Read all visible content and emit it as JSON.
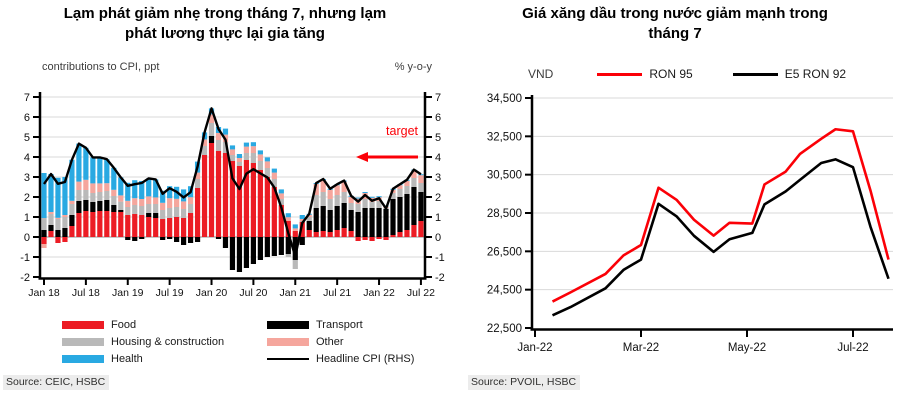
{
  "page": {
    "background": "#ffffff"
  },
  "colors": {
    "food": "#ec1c24",
    "transport": "#000000",
    "housing": "#b9b9b9",
    "other": "#f5a69d",
    "health": "#29a9e2",
    "headline": "#000000",
    "target": "#fb0007",
    "ron95": "#fb0007",
    "e5ron92": "#000000",
    "grid": "#d9d9d9",
    "axis": "#000000"
  },
  "left_chart": {
    "title_lines": [
      "Lạm phát giảm nhẹ trong tháng 7, nhưng lạm",
      "phát lương thực lại gia tăng"
    ],
    "left_axis_caption": "contributions to CPI, ppt",
    "right_axis_caption": "% y-o-y",
    "source": "Source: CEIC, HSBC"
  },
  "right_chart": {
    "title_lines": [
      "Giá xăng dầu trong nước giảm mạnh trong",
      "tháng 7"
    ],
    "source": "Source: PVOIL, HSBC"
  },
  "chart_data": [
    {
      "type": "stacked-bar+line",
      "title": "Lạm phát giảm nhẹ trong tháng 7, nhưng lạm phát lương thực lại gia tăng",
      "left_axis_label": "contributions to CPI, ppt",
      "right_axis_label": "% y-o-y",
      "ylim": [
        -2,
        7
      ],
      "ytick_step": 1,
      "grid": "horizontal",
      "xtick_every": 6,
      "xtick_labels": [
        "Jan 18",
        "Jul 18",
        "Jan 19",
        "Jul 19",
        "Jan 20",
        "Jul 20",
        "Jan 21",
        "Jul 21",
        "Jan 22",
        "Jul 22"
      ],
      "annotation": {
        "text": "target",
        "y": 4
      },
      "categories": [
        "Jan-18",
        "Feb-18",
        "Mar-18",
        "Apr-18",
        "May-18",
        "Jun-18",
        "Jul-18",
        "Aug-18",
        "Sep-18",
        "Oct-18",
        "Nov-18",
        "Dec-18",
        "Jan-19",
        "Feb-19",
        "Mar-19",
        "Apr-19",
        "May-19",
        "Jun-19",
        "Jul-19",
        "Aug-19",
        "Sep-19",
        "Oct-19",
        "Nov-19",
        "Dec-19",
        "Jan-20",
        "Feb-20",
        "Mar-20",
        "Apr-20",
        "May-20",
        "Jun-20",
        "Jul-20",
        "Aug-20",
        "Sep-20",
        "Oct-20",
        "Nov-20",
        "Dec-20",
        "Jan-21",
        "Feb-21",
        "Mar-21",
        "Apr-21",
        "May-21",
        "Jun-21",
        "Jul-21",
        "Aug-21",
        "Sep-21",
        "Oct-21",
        "Nov-21",
        "Dec-21",
        "Jan-22",
        "Feb-22",
        "Mar-22",
        "Apr-22",
        "May-22",
        "Jun-22",
        "Jul-22"
      ],
      "series": [
        {
          "name": "Food",
          "color_key": "food",
          "values": [
            -0.35,
            0.3,
            -0.3,
            -0.25,
            0.55,
            1.2,
            1.3,
            1.25,
            1.3,
            1.3,
            1.25,
            1.25,
            1.1,
            1.15,
            1.1,
            1.0,
            0.95,
            0.9,
            0.95,
            1.0,
            0.95,
            1.2,
            2.45,
            4.1,
            4.7,
            4.3,
            4.2,
            3.8,
            3.55,
            3.85,
            3.7,
            3.35,
            3.0,
            2.5,
            1.6,
            0.8,
            0.3,
            0.75,
            0.35,
            0.25,
            0.3,
            0.25,
            0.35,
            0.45,
            0.3,
            -0.2,
            -0.15,
            -0.2,
            -0.1,
            -0.15,
            0.1,
            0.25,
            0.35,
            0.6,
            0.8
          ]
        },
        {
          "name": "Transport",
          "color_key": "transport",
          "values": [
            0.35,
            0.3,
            0.35,
            0.45,
            0.55,
            0.6,
            0.55,
            0.5,
            0.5,
            0.55,
            0.35,
            0.1,
            -0.15,
            -0.2,
            -0.1,
            0.2,
            0.25,
            -0.15,
            -0.1,
            -0.25,
            -0.4,
            -0.3,
            -0.25,
            0.0,
            0.35,
            -0.1,
            -0.55,
            -1.65,
            -1.75,
            -1.55,
            -1.35,
            -1.15,
            -1.0,
            -0.95,
            -0.9,
            -0.85,
            -1.15,
            -0.4,
            0.45,
            1.2,
            1.25,
            1.1,
            1.2,
            1.25,
            1.05,
            1.25,
            1.45,
            1.45,
            1.45,
            1.4,
            1.8,
            1.75,
            1.8,
            1.9,
            1.45
          ]
        },
        {
          "name": "Housing & construction",
          "color_key": "housing",
          "values": [
            0.6,
            0.55,
            0.55,
            0.55,
            0.55,
            0.55,
            0.5,
            0.45,
            0.45,
            0.45,
            0.45,
            0.42,
            0.4,
            0.45,
            0.45,
            0.45,
            0.45,
            0.45,
            0.5,
            0.5,
            0.45,
            0.45,
            0.45,
            0.45,
            0.65,
            0.55,
            0.55,
            0.3,
            0.2,
            0.35,
            0.5,
            0.45,
            0.45,
            0.4,
            0.3,
            -0.15,
            -0.45,
            0.05,
            0.2,
            0.65,
            0.7,
            0.55,
            0.55,
            0.55,
            0.35,
            0.4,
            0.45,
            0.3,
            0.35,
            0.05,
            0.3,
            0.4,
            0.4,
            0.45,
            0.45
          ]
        },
        {
          "name": "Other",
          "color_key": "other",
          "values": [
            -0.2,
            0.1,
            0.06,
            0.1,
            0.16,
            0.42,
            0.51,
            0.48,
            0.43,
            0.39,
            0.31,
            0.31,
            0.31,
            0.34,
            0.35,
            0.38,
            0.33,
            0.36,
            0.49,
            0.41,
            0.38,
            0.34,
            0.32,
            0.33,
            0.43,
            0.35,
            0.37,
            0.28,
            0.2,
            0.32,
            0.34,
            0.33,
            0.33,
            0.32,
            0.28,
            0.19,
            0.13,
            0.1,
            0.11,
            0.55,
            0.6,
            0.46,
            0.49,
            0.52,
            0.31,
            0.27,
            0.3,
            0.21,
            0.19,
            0.07,
            0.16,
            0.19,
            0.26,
            0.37,
            0.39
          ]
        },
        {
          "name": "Health",
          "color_key": "health",
          "values": [
            2.25,
            1.9,
            2.0,
            1.9,
            2.05,
            1.9,
            1.6,
            1.3,
            1.3,
            1.2,
            1.1,
            0.9,
            0.9,
            0.9,
            0.9,
            0.9,
            0.9,
            0.6,
            0.6,
            0.6,
            0.6,
            0.55,
            0.55,
            0.35,
            0.3,
            0.3,
            0.3,
            0.2,
            0.2,
            0.2,
            0.2,
            0.2,
            0.2,
            0.2,
            0.2,
            0.2,
            0.2,
            0.2,
            0.05,
            0.05,
            0.05,
            0.05,
            0.05,
            0.05,
            0.05,
            0.05,
            0.05,
            0.05,
            0.05,
            0.05,
            0.05,
            0.05,
            0.05,
            0.05,
            0.05
          ]
        }
      ],
      "line_series": {
        "name": "Headline CPI (RHS)",
        "color_key": "headline",
        "values": [
          2.65,
          3.15,
          2.66,
          2.75,
          3.86,
          4.67,
          4.46,
          3.98,
          3.98,
          3.89,
          3.46,
          2.98,
          2.56,
          2.64,
          2.7,
          2.93,
          2.88,
          2.16,
          2.44,
          2.26,
          1.98,
          2.24,
          3.52,
          5.23,
          6.43,
          5.4,
          4.87,
          2.93,
          2.4,
          3.17,
          3.39,
          3.18,
          2.98,
          2.47,
          1.48,
          0.19,
          -0.97,
          0.7,
          1.16,
          2.7,
          2.9,
          2.41,
          2.64,
          2.82,
          2.06,
          1.77,
          2.1,
          1.81,
          1.94,
          1.42,
          2.41,
          2.64,
          2.86,
          3.37,
          3.14
        ]
      }
    },
    {
      "type": "line",
      "title": "Giá xăng dầu trong nước giảm mạnh trong tháng 7",
      "ylabel": "VND",
      "ylim": [
        22500,
        34500
      ],
      "ytick_step": 2000,
      "grid": "horizontal",
      "legend_position": "top",
      "x_unit": "months since Jan-2022",
      "x": [
        0.33,
        0.67,
        1.33,
        1.67,
        2.0,
        2.33,
        2.67,
        3.0,
        3.37,
        3.67,
        4.1,
        4.33,
        4.73,
        5.0,
        5.4,
        5.67,
        6.0,
        6.33,
        6.67
      ],
      "xticks": [
        {
          "pos": 0,
          "label": "Jan-22"
        },
        {
          "pos": 2,
          "label": "Mar-22"
        },
        {
          "pos": 4,
          "label": "May-22"
        },
        {
          "pos": 6,
          "label": "Jul-22"
        }
      ],
      "series": [
        {
          "name": "RON 95",
          "color_key": "ron95",
          "values": [
            23880,
            24360,
            25320,
            26290,
            26830,
            29820,
            29190,
            28150,
            27320,
            27990,
            27950,
            29990,
            30660,
            31580,
            32370,
            32870,
            32760,
            29670,
            26070
          ]
        },
        {
          "name": "E5 RON 92",
          "color_key": "e5ron92",
          "values": [
            23160,
            23590,
            24570,
            25530,
            26070,
            28980,
            28330,
            27310,
            26470,
            27130,
            27460,
            28950,
            29630,
            30230,
            31110,
            31300,
            30890,
            27780,
            25070
          ]
        }
      ]
    }
  ]
}
